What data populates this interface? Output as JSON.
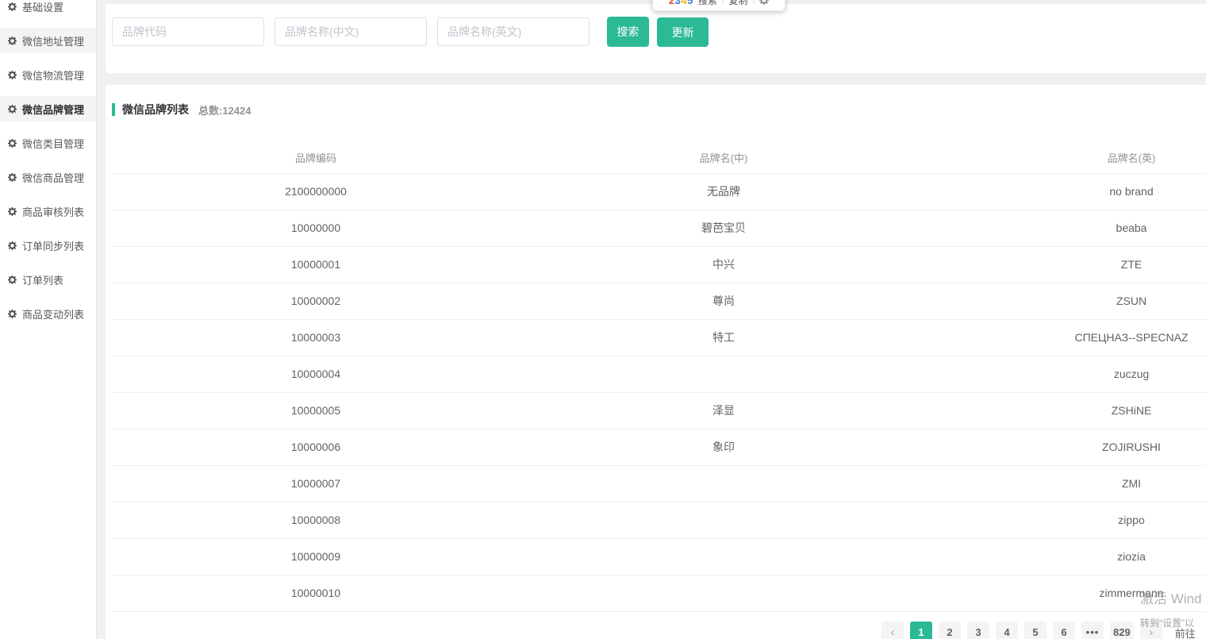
{
  "colors": {
    "accent_green": "#2bb996",
    "sidebar_highlight": "#f4f4f5",
    "logo_letter_colors": [
      "#e64c3c",
      "#3a7bd5",
      "#f5b50a",
      "#3a7bd5"
    ]
  },
  "ext_popup": {
    "logo_letters": [
      "2",
      "3",
      "4",
      "5"
    ],
    "actions": [
      "搜索",
      "复制"
    ],
    "gear_icon": "gear-icon"
  },
  "sidebar": {
    "items": [
      {
        "label": "基础设置",
        "state": "normal"
      },
      {
        "label": "微信地址管理",
        "state": "highlighted"
      },
      {
        "label": "微信物流管理",
        "state": "normal"
      },
      {
        "label": "微信品牌管理",
        "state": "active"
      },
      {
        "label": "微信类目管理",
        "state": "normal"
      },
      {
        "label": "微信商品管理",
        "state": "normal"
      },
      {
        "label": "商品审核列表",
        "state": "normal"
      },
      {
        "label": "订单同步列表",
        "state": "normal"
      },
      {
        "label": "订单列表",
        "state": "normal"
      },
      {
        "label": "商品变动列表",
        "state": "normal"
      }
    ],
    "item_icon": "gear-icon"
  },
  "search": {
    "inputs": [
      {
        "placeholder": "品牌代码",
        "value": ""
      },
      {
        "placeholder": "品牌名称(中文)",
        "value": ""
      },
      {
        "placeholder": "品牌名称(英文)",
        "value": ""
      }
    ],
    "search_label": "搜索",
    "update_label": "更新"
  },
  "table": {
    "title": "微信品牌列表",
    "total_label": "总数:12424",
    "columns": [
      "品牌编码",
      "品牌名(中)",
      "品牌名(英)"
    ],
    "rows": [
      [
        "2100000000",
        "无品牌",
        "no brand"
      ],
      [
        "10000000",
        "碧芭宝贝",
        "beaba"
      ],
      [
        "10000001",
        "中兴",
        "ZTE"
      ],
      [
        "10000002",
        "尊尚",
        "ZSUN"
      ],
      [
        "10000003",
        "特工",
        "СПЕЦНАЗ--SPECNAZ"
      ],
      [
        "10000004",
        "",
        "zuczug"
      ],
      [
        "10000005",
        "泽显",
        "ZSHiNE"
      ],
      [
        "10000006",
        "象印",
        "ZOJIRUSHI"
      ],
      [
        "10000007",
        "",
        "ZMI"
      ],
      [
        "10000008",
        "",
        "zippo"
      ],
      [
        "10000009",
        "",
        "ziozia"
      ],
      [
        "10000010",
        "",
        "zimmermann"
      ]
    ]
  },
  "pagination": {
    "prev_icon": "chevron-left-icon",
    "next_icon": "chevron-right-icon",
    "pages": [
      "1",
      "2",
      "3",
      "4",
      "5",
      "6",
      "...",
      "829"
    ],
    "active_page": "1",
    "jumper_label": "前往"
  },
  "watermark": {
    "line1": "激活 Wind",
    "line2": "转到“设置”以"
  }
}
